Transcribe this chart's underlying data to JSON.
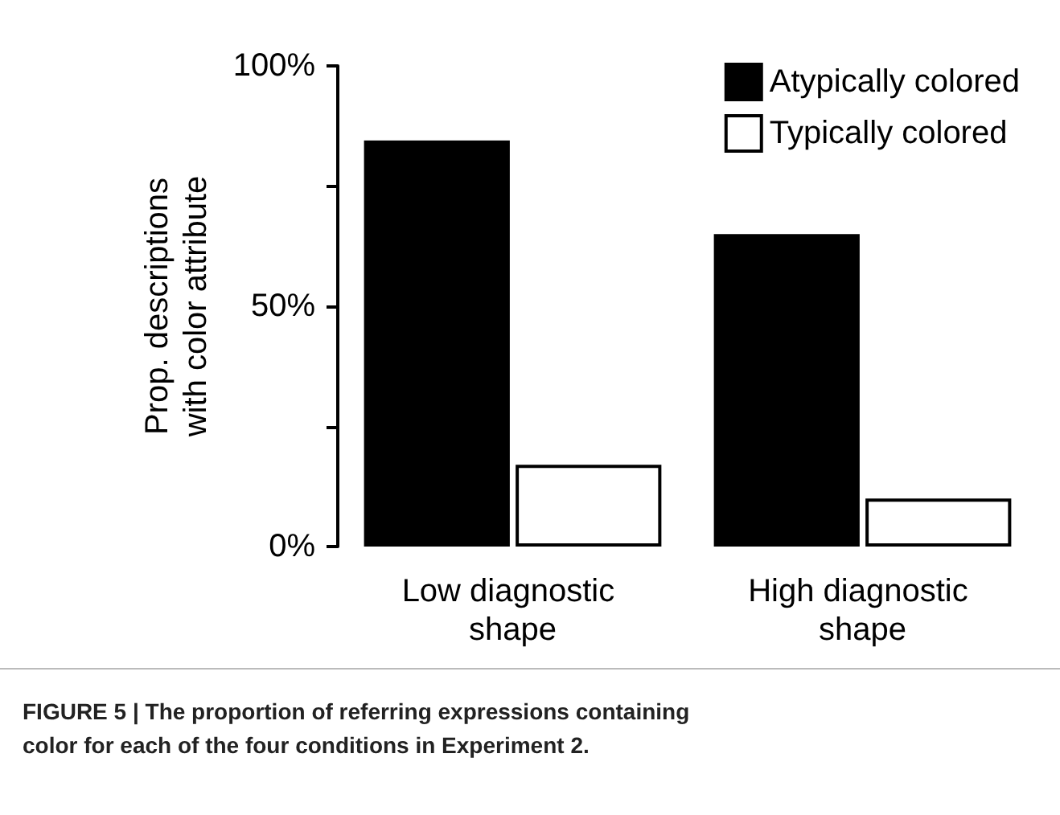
{
  "chart_data": {
    "type": "bar",
    "ylabel": "Prop. descriptions\nwith color attribute",
    "categories": [
      "Low diagnostic shape",
      "High diagnostic shape"
    ],
    "series": [
      {
        "name": "Atypically colored",
        "color": "#000000",
        "values": [
          84.5,
          65
        ]
      },
      {
        "name": "Typically colored",
        "color": "#ffffff",
        "values": [
          17,
          10
        ]
      }
    ],
    "ylim": [
      0,
      100
    ],
    "yticks": [
      {
        "value": 0,
        "label": "0%"
      },
      {
        "value": 25,
        "label": null
      },
      {
        "value": 50,
        "label": "50%"
      },
      {
        "value": 75,
        "label": null
      },
      {
        "value": 100,
        "label": "100%"
      }
    ],
    "grid": false,
    "legend": "top right",
    "annotations": [
      "FIGURE 5 | The proportion of referring expressions containing color for each of the four conditions in Experiment 2."
    ]
  }
}
